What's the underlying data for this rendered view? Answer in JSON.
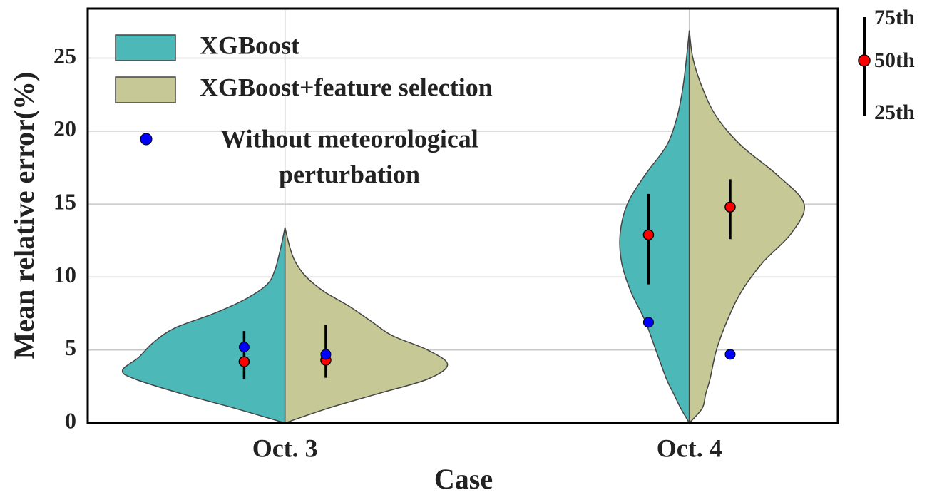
{
  "chart_data": {
    "type": "violin",
    "y_label": "Mean relative error(%)",
    "x_label": "Case",
    "categories": [
      "Oct. 3",
      "Oct. 4"
    ],
    "ylim": [
      0,
      28.4
    ],
    "yticks": [
      0,
      5,
      10,
      15,
      20,
      25
    ],
    "grid": true,
    "median_color": "#ff0000",
    "series": [
      {
        "name": "XGBoost",
        "color": "#4db8b8",
        "kde": [
          {
            "y": [
              0,
              1,
              2,
              3,
              3.6,
              4.5,
              5.5,
              6.5,
              7.5,
              8.5,
              9.5,
              10.5,
              12,
              13.4
            ],
            "density": [
              0,
              70,
              145,
              210,
              228,
              205,
              185,
              155,
              100,
              55,
              25,
              14,
              6,
              0
            ]
          },
          {
            "y": [
              0,
              1,
              2,
              3,
              5,
              7,
              9,
              11,
              13,
              15,
              17,
              19,
              21,
              23,
              25,
              26.9
            ],
            "density": [
              0,
              12,
              22,
              32,
              47,
              62,
              82,
              95,
              97,
              87,
              62,
              32,
              17,
              9,
              4,
              0
            ]
          }
        ],
        "q1": [
          3.0,
          9.5
        ],
        "median": [
          4.2,
          12.9
        ],
        "q3": [
          6.3,
          15.7
        ],
        "without_perturbation": [
          5.2,
          6.9
        ]
      },
      {
        "name": "XGBoost+feature selection",
        "color": "#c6c896",
        "kde": [
          {
            "y": [
              0,
              1,
              2,
              3,
              4,
              5,
              6,
              7,
              8,
              9,
              10,
              11,
              12,
              13.4
            ],
            "density": [
              0,
              60,
              130,
              200,
              228,
              200,
              150,
              120,
              90,
              55,
              30,
              15,
              7,
              0
            ]
          },
          {
            "y": [
              0,
              1,
              2,
              3,
              5,
              7,
              9,
              11,
              13,
              15,
              17,
              19,
              21,
              23,
              25,
              26.9
            ],
            "density": [
              0,
              18,
              23,
              29,
              38,
              53,
              73,
              103,
              143,
              161,
              123,
              73,
              38,
              18,
              5,
              0
            ]
          }
        ],
        "q1": [
          3.1,
          12.6
        ],
        "median": [
          4.3,
          14.8
        ],
        "q3": [
          6.7,
          16.7
        ],
        "without_perturbation": [
          4.7,
          4.7
        ]
      }
    ],
    "point_legend": {
      "lines": [
        "Without meteorological",
        "perturbation"
      ],
      "color": "#0000ff"
    },
    "quartile_key": [
      "75th",
      "50th",
      "25th"
    ]
  }
}
